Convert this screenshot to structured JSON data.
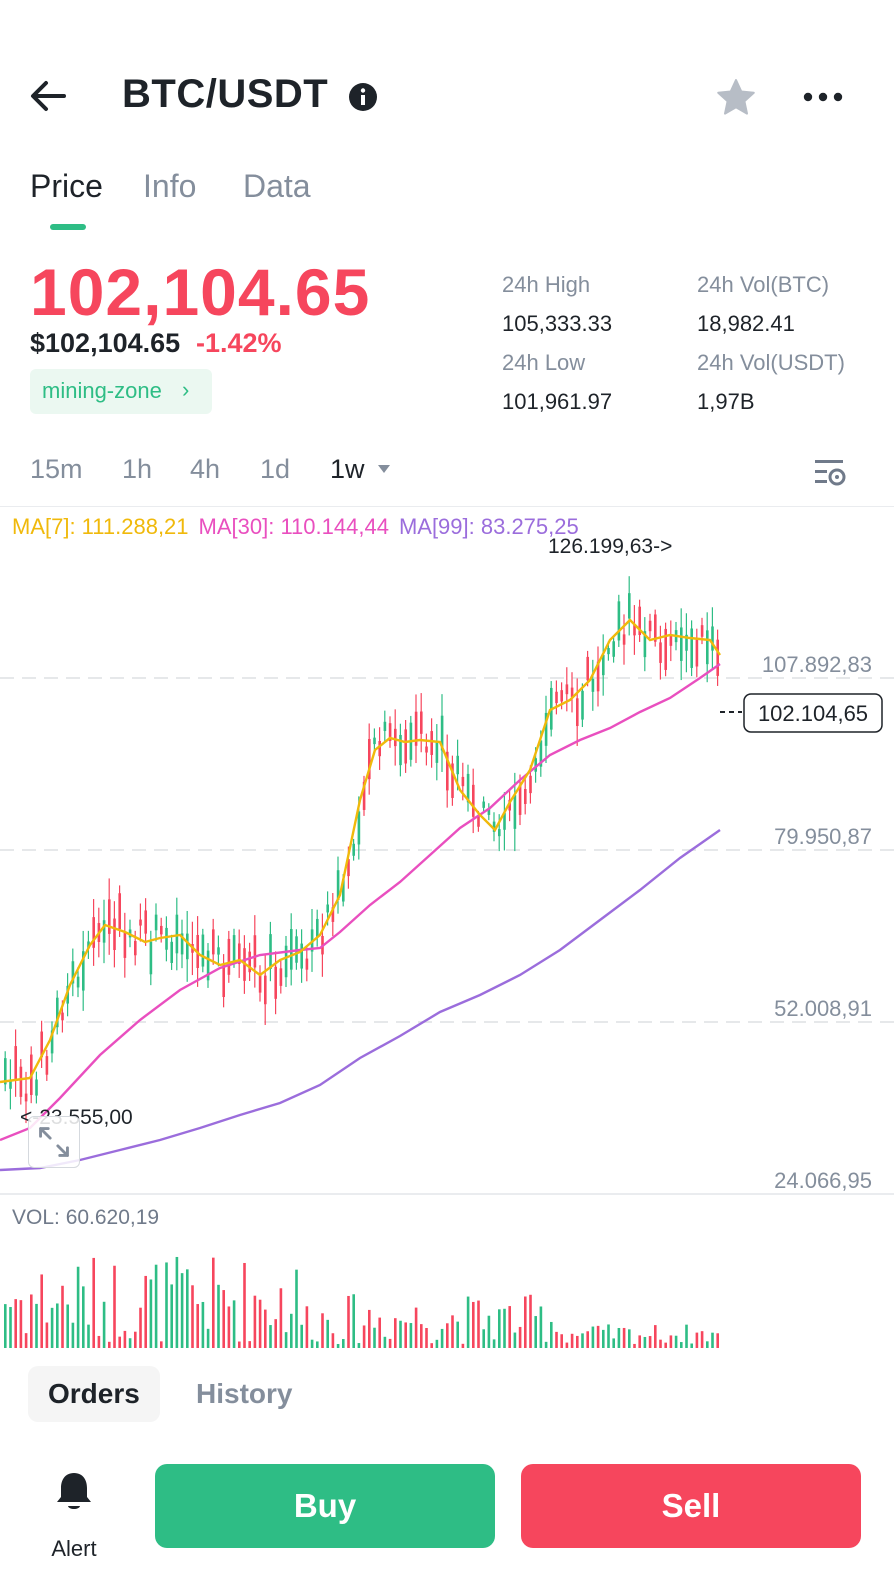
{
  "header": {
    "title": "BTC/USDT"
  },
  "tabs": [
    {
      "label": "Price",
      "active": true
    },
    {
      "label": "Info",
      "active": false
    },
    {
      "label": "Data",
      "active": false
    }
  ],
  "price": {
    "last": "102,104.65",
    "usd": "$102,104.65",
    "change": "-1.42%",
    "zone_label": "mining-zone",
    "zone_chevron": "›"
  },
  "stats": {
    "high_label": "24h High",
    "high_value": "105,333.33",
    "low_label": "24h Low",
    "low_value": "101,961.97",
    "vol_btc_label": "24h Vol(BTC)",
    "vol_btc_value": "18,982.41",
    "vol_usdt_label": "24h Vol(USDT)",
    "vol_usdt_value": "1,97B"
  },
  "timeframes": {
    "items": [
      "15m",
      "1h",
      "4h",
      "1d",
      "1w"
    ],
    "active": "1w"
  },
  "ma": {
    "ma7": "MA[7]: 111.288,21",
    "ma30": "MA[30]: 110.144,44",
    "ma99": "MA[99]: 83.275,25"
  },
  "chart_data": {
    "type": "candlestick",
    "y_axis_labels": [
      "107.892,83",
      "79.950,87",
      "52.008,91",
      "24.066,95"
    ],
    "current_price_label": "102.104,65",
    "max_marker": "126.199,63->",
    "min_marker": "<-23.555,00",
    "volume_label": "VOL: 60.620,19",
    "colors": {
      "up": "#2ebd85",
      "down": "#f6465d",
      "ma7": "#f0b90b",
      "ma30": "#e94fbf",
      "ma99": "#9b6ddc"
    }
  },
  "bottom_tabs": [
    {
      "label": "Orders",
      "active": true
    },
    {
      "label": "History",
      "active": false
    }
  ],
  "actions": {
    "alert_label": "Alert",
    "buy_label": "Buy",
    "sell_label": "Sell"
  },
  "icons": {
    "back": "arrow-left-icon",
    "info": "info-icon",
    "star": "star-icon",
    "more": "more-icon",
    "chart_settings": "chart-settings-icon",
    "expand": "expand-icon",
    "alert": "bell-icon"
  }
}
